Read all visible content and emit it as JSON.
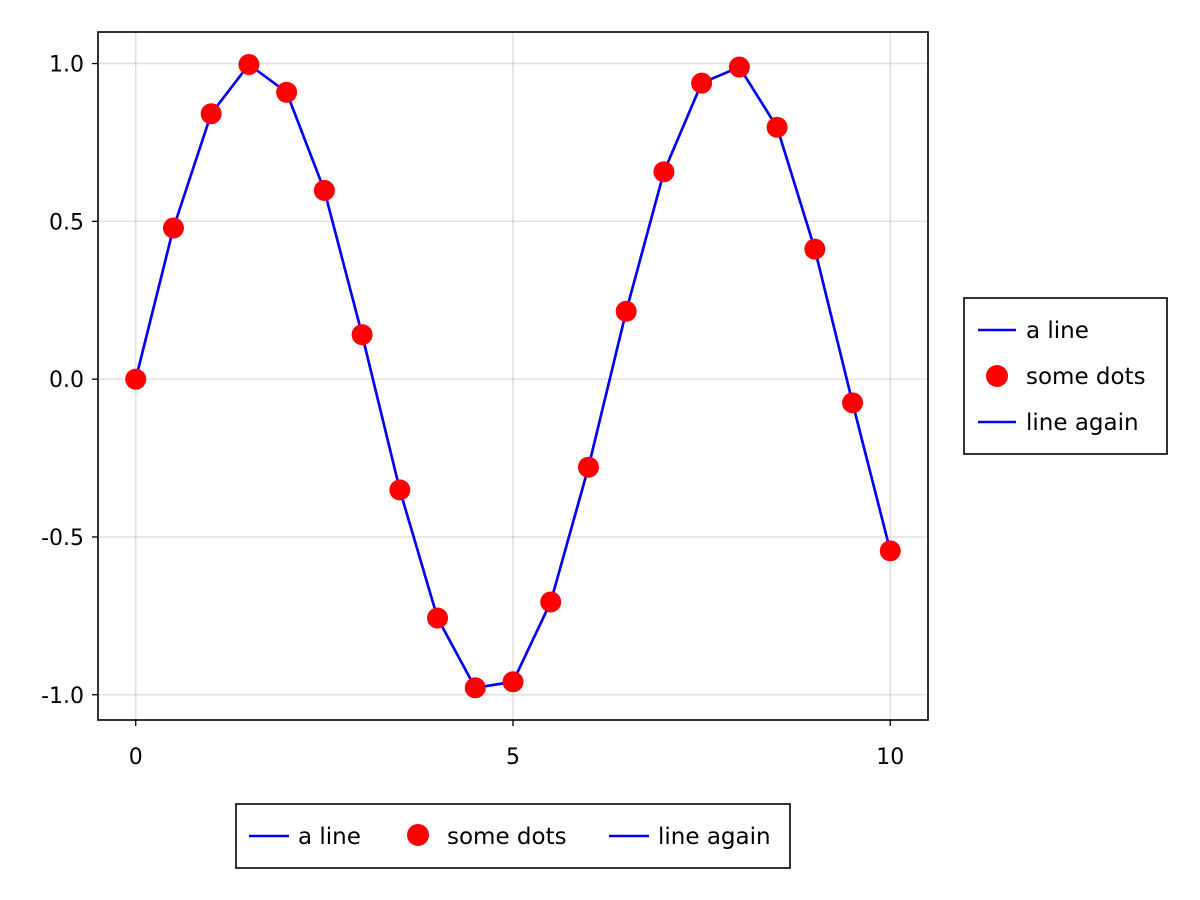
{
  "chart_data": {
    "type": "line",
    "title": "",
    "xlabel": "",
    "ylabel": "",
    "xlim": [
      -0.5,
      10.5
    ],
    "ylim": [
      -1.08,
      1.1
    ],
    "x_ticks": [
      0,
      5,
      10
    ],
    "x_tick_labels": [
      "0",
      "5",
      "10"
    ],
    "y_ticks": [
      1.0,
      0.5,
      0.0,
      -0.5,
      -1.0
    ],
    "y_tick_labels": [
      "1.0",
      "0.5",
      "0.0",
      "-0.5",
      "-1.0"
    ],
    "grid": true,
    "x": [
      0,
      0.5,
      1,
      1.5,
      2,
      2.5,
      3,
      3.5,
      4,
      4.5,
      5,
      5.5,
      6,
      6.5,
      7,
      7.5,
      8,
      8.5,
      9,
      9.5,
      10
    ],
    "series": [
      {
        "name": "a line",
        "kind": "line",
        "color": "#0000ff",
        "values": [
          0.0,
          0.479,
          0.841,
          0.997,
          0.909,
          0.598,
          0.141,
          -0.351,
          -0.757,
          -0.978,
          -0.959,
          -0.706,
          -0.279,
          0.215,
          0.657,
          0.938,
          0.989,
          0.798,
          0.412,
          -0.075,
          -0.544
        ]
      },
      {
        "name": "some dots",
        "kind": "scatter",
        "color": "#ff0000",
        "values": [
          0.0,
          0.479,
          0.841,
          0.997,
          0.909,
          0.598,
          0.141,
          -0.351,
          -0.757,
          -0.978,
          -0.959,
          -0.706,
          -0.279,
          0.215,
          0.657,
          0.938,
          0.989,
          0.798,
          0.412,
          -0.075,
          -0.544
        ]
      },
      {
        "name": "line again",
        "kind": "line",
        "color": "#0000ff",
        "values": [
          0.0,
          0.479,
          0.841,
          0.997,
          0.909,
          0.598,
          0.141,
          -0.351,
          -0.757,
          -0.978,
          -0.959,
          -0.706,
          -0.279,
          0.215,
          0.657,
          0.938,
          0.989,
          0.798,
          0.412,
          -0.075,
          -0.544
        ]
      }
    ],
    "legends": [
      {
        "placement": "right",
        "orientation": "vertical",
        "entries": [
          {
            "label": "a line",
            "marker": "line",
            "color": "#0000ff"
          },
          {
            "label": "some dots",
            "marker": "dot",
            "color": "#ff0000"
          },
          {
            "label": "line again",
            "marker": "line",
            "color": "#0000ff"
          }
        ]
      },
      {
        "placement": "bottom",
        "orientation": "horizontal",
        "entries": [
          {
            "label": "a line",
            "marker": "line",
            "color": "#0000ff"
          },
          {
            "label": "some dots",
            "marker": "dot",
            "color": "#ff0000"
          },
          {
            "label": "line again",
            "marker": "line",
            "color": "#0000ff"
          }
        ]
      }
    ]
  }
}
